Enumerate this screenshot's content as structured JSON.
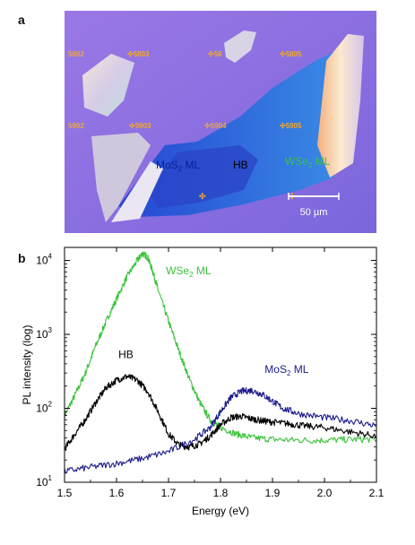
{
  "figure": {
    "panel_a": "a",
    "panel_b": "b"
  },
  "micrograph": {
    "markers_row1": [
      "5802",
      "5803",
      "58",
      "5805"
    ],
    "markers_row2": [
      "5902",
      "5903",
      "5904",
      "5905"
    ],
    "label_mos2": "MoS",
    "label_mos2_sub": "2",
    "label_mos2_suffix": " ML",
    "label_hb": "HB",
    "label_wse2": "WSe",
    "label_wse2_sub": "2",
    "label_wse2_suffix": " ML",
    "scale_bar": "50 µm",
    "colors": {
      "substrate": "#8a6fe0",
      "mos2": "#2a4fd6",
      "wse2": "#3a86e8",
      "label_mos2": "#0a1f9a",
      "label_hb": "#000000",
      "label_wse2": "#39c247",
      "marker": "#e8a020"
    }
  },
  "chart_data": {
    "type": "line",
    "xlabel": "Energy (eV)",
    "ylabel": "PL intensity (log)",
    "xlim": [
      1.5,
      2.1
    ],
    "ylim": [
      10,
      15000
    ],
    "y_scale": "log",
    "x_ticks": [
      "1.5",
      "1.6",
      "1.7",
      "1.8",
      "1.9",
      "2.0",
      "2.1"
    ],
    "y_ticks": [
      {
        "value": 10,
        "base": "10",
        "exp": "1"
      },
      {
        "value": 100,
        "base": "10",
        "exp": "2"
      },
      {
        "value": 1000,
        "base": "10",
        "exp": "3"
      },
      {
        "value": 10000,
        "base": "10",
        "exp": "4"
      }
    ],
    "series": [
      {
        "name": "WSe2 ML",
        "label_main": "WSe",
        "label_sub": "2",
        "label_suffix": " ML",
        "color": "#3cc23c",
        "x": [
          1.5,
          1.52,
          1.54,
          1.56,
          1.58,
          1.6,
          1.62,
          1.64,
          1.65,
          1.66,
          1.67,
          1.68,
          1.7,
          1.72,
          1.74,
          1.76,
          1.78,
          1.8,
          1.83,
          1.86,
          1.9,
          1.95,
          2.0,
          2.05,
          2.1
        ],
        "y": [
          80,
          150,
          300,
          700,
          1500,
          3000,
          6000,
          10000,
          12500,
          11000,
          7000,
          4000,
          1500,
          600,
          250,
          120,
          70,
          55,
          45,
          40,
          38,
          37,
          37,
          38,
          38
        ]
      },
      {
        "name": "HB",
        "label_main": "HB",
        "label_sub": "",
        "label_suffix": "",
        "color": "#000000",
        "x": [
          1.5,
          1.52,
          1.54,
          1.56,
          1.58,
          1.6,
          1.62,
          1.64,
          1.66,
          1.68,
          1.7,
          1.72,
          1.74,
          1.76,
          1.78,
          1.8,
          1.82,
          1.84,
          1.86,
          1.88,
          1.9,
          1.93,
          1.96,
          2.0,
          2.05,
          2.1
        ],
        "y": [
          28,
          45,
          70,
          120,
          190,
          240,
          270,
          240,
          170,
          90,
          45,
          32,
          30,
          33,
          42,
          60,
          75,
          78,
          72,
          68,
          65,
          62,
          58,
          55,
          48,
          42
        ]
      },
      {
        "name": "MoS2 ML",
        "label_main": "MoS",
        "label_sub": "2",
        "label_suffix": " ML",
        "color": "#1a1a8c",
        "x": [
          1.5,
          1.55,
          1.6,
          1.65,
          1.7,
          1.75,
          1.78,
          1.8,
          1.82,
          1.84,
          1.86,
          1.88,
          1.9,
          1.92,
          1.95,
          2.0,
          2.05,
          2.1
        ],
        "y": [
          14,
          16,
          18,
          21,
          26,
          38,
          55,
          90,
          140,
          170,
          175,
          155,
          125,
          100,
          85,
          75,
          68,
          58
        ]
      }
    ]
  }
}
